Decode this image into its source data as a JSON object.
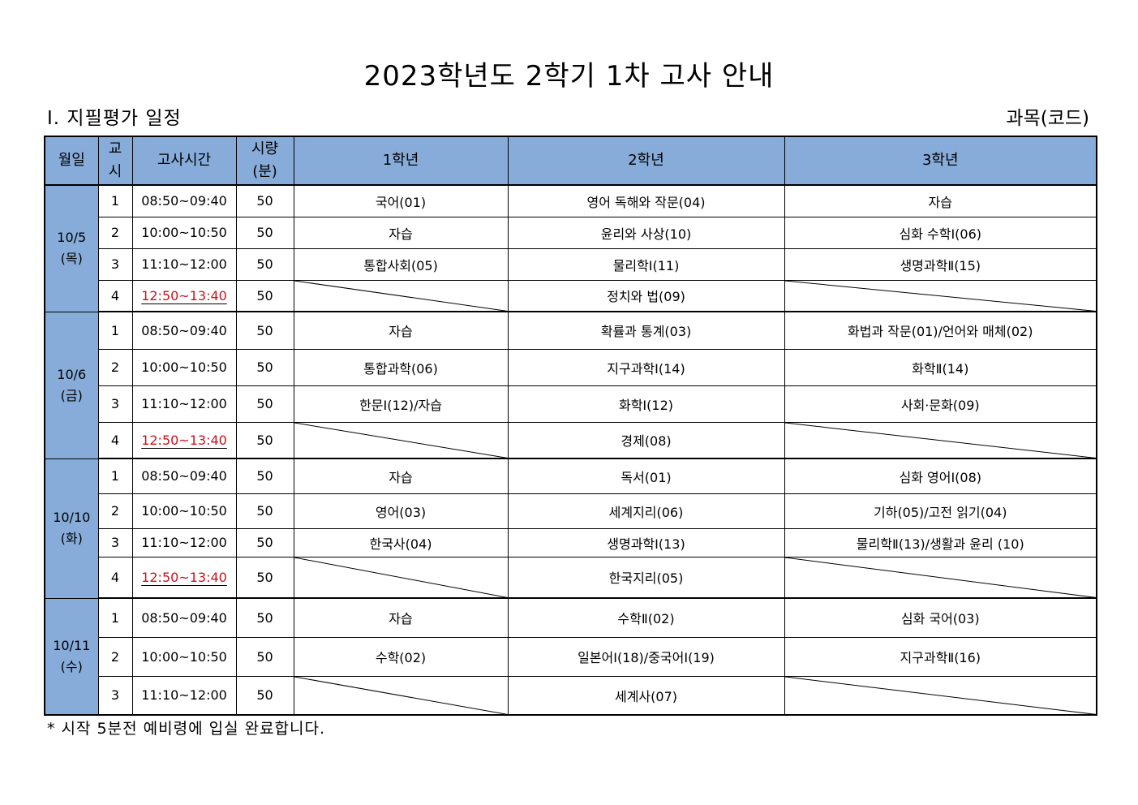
{
  "title": "2023학년도 2학기 1차 고사 안내",
  "section_title": "Ⅰ. 지필평가 일정",
  "unit_label": "과목(코드)",
  "table": {
    "headers": {
      "date": "월일",
      "period_line1": "교",
      "period_line2": "시",
      "time": "고사시간",
      "duration_line1": "시량",
      "duration_line2": "(분)",
      "grade1": "1학년",
      "grade2": "2학년",
      "grade3": "3학년"
    },
    "days": [
      {
        "date": "10/5",
        "weekday": "(목)",
        "rows": [
          {
            "period": "1",
            "time": "08:50~09:40",
            "minutes": "50",
            "g1": "국어(01)",
            "g2": "영어 독해와 작문(04)",
            "g3": "자습"
          },
          {
            "period": "2",
            "time": "10:00~10:50",
            "minutes": "50",
            "g1": "자습",
            "g2": "윤리와 사상(10)",
            "g3": "심화 수학Ⅰ(06)"
          },
          {
            "period": "3",
            "time": "11:10~12:00",
            "minutes": "50",
            "g1": "통합사회(05)",
            "g2": "물리학Ⅰ(11)",
            "g3": "생명과학Ⅱ(15)"
          },
          {
            "period": "4",
            "time": "12:50~13:40",
            "minutes": "50",
            "g1": "",
            "g2": "정치와 법(09)",
            "g3": "",
            "time_highlight": true
          }
        ]
      },
      {
        "date": "10/6",
        "weekday": "(금)",
        "rows": [
          {
            "period": "1",
            "time": "08:50~09:40",
            "minutes": "50",
            "g1": "자습",
            "g2": "확률과 통계(03)",
            "g3": "화법과 작문(01)/언어와 매체(02)"
          },
          {
            "period": "2",
            "time": "10:00~10:50",
            "minutes": "50",
            "g1": "통합과학(06)",
            "g2": "지구과학Ⅰ(14)",
            "g3": "화학Ⅱ(14)"
          },
          {
            "period": "3",
            "time": "11:10~12:00",
            "minutes": "50",
            "g1": "한문Ⅰ(12)/자습",
            "g2": "화학Ⅰ(12)",
            "g3": "사회·문화(09)"
          },
          {
            "period": "4",
            "time": "12:50~13:40",
            "minutes": "50",
            "g1": "",
            "g2": "경제(08)",
            "g3": "",
            "time_highlight": true
          }
        ]
      },
      {
        "date": "10/10",
        "weekday": "(화)",
        "rows": [
          {
            "period": "1",
            "time": "08:50~09:40",
            "minutes": "50",
            "g1": "자습",
            "g2": "독서(01)",
            "g3": "심화 영어Ⅰ(08)"
          },
          {
            "period": "2",
            "time": "10:00~10:50",
            "minutes": "50",
            "g1": "영어(03)",
            "g2": "세계지리(06)",
            "g3": "기하(05)/고전 읽기(04)"
          },
          {
            "period": "3",
            "time": "11:10~12:00",
            "minutes": "50",
            "g1": "한국사(04)",
            "g2": "생명과학Ⅰ(13)",
            "g3": "물리학Ⅱ(13)/생활과 윤리 (10)"
          },
          {
            "period": "4",
            "time": "12:50~13:40",
            "minutes": "50",
            "g1": "",
            "g2": "한국지리(05)",
            "g3": "",
            "time_highlight": true
          }
        ]
      },
      {
        "date": "10/11",
        "weekday": "(수)",
        "rows": [
          {
            "period": "1",
            "time": "08:50~09:40",
            "minutes": "50",
            "g1": "자습",
            "g2": "수학Ⅱ(02)",
            "g3": "심화 국어(03)"
          },
          {
            "period": "2",
            "time": "10:00~10:50",
            "minutes": "50",
            "g1": "수학(02)",
            "g2": "일본어Ⅰ(18)/중국어Ⅰ(19)",
            "g3": "지구과학Ⅱ(16)"
          },
          {
            "period": "3",
            "time": "11:10~12:00",
            "minutes": "50",
            "g1": "",
            "g2": "세계사(07)",
            "g3": ""
          }
        ]
      }
    ]
  },
  "footnote": "* 시작 5분전 예비령에 입실 완료합니다.",
  "colors": {
    "header_bg": "#87acd9",
    "highlight_time": "#d0101a"
  }
}
